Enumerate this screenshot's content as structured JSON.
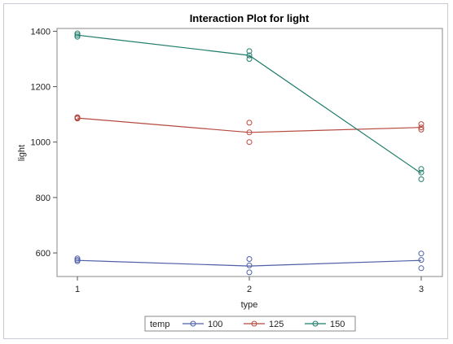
{
  "chart_data": {
    "type": "line",
    "title": "Interaction Plot for light",
    "xlabel": "type",
    "ylabel": "light",
    "categories": [
      "1",
      "2",
      "3"
    ],
    "ylim": [
      515,
      1410
    ],
    "yticks": [
      600,
      800,
      1000,
      1200,
      1400
    ],
    "legend": {
      "title": "temp",
      "placement": "bottom"
    },
    "series": [
      {
        "name": "100",
        "color": "#4f5fa8",
        "means": [
          573,
          553,
          573
        ],
        "points": [
          [
            570,
            575,
            580
          ],
          [
            530,
            555,
            578
          ],
          [
            545,
            575,
            598
          ]
        ]
      },
      {
        "name": "125",
        "color": "#b5493f",
        "means": [
          1087,
          1035,
          1053
        ],
        "points": [
          [
            1085,
            1087,
            1090
          ],
          [
            1000,
            1035,
            1070
          ],
          [
            1045,
            1053,
            1065
          ]
        ]
      },
      {
        "name": "150",
        "color": "#1f7c6a",
        "means": [
          1386,
          1313,
          887
        ],
        "points": [
          [
            1380,
            1386,
            1392
          ],
          [
            1300,
            1313,
            1328
          ],
          [
            866,
            890,
            903
          ]
        ]
      }
    ]
  }
}
